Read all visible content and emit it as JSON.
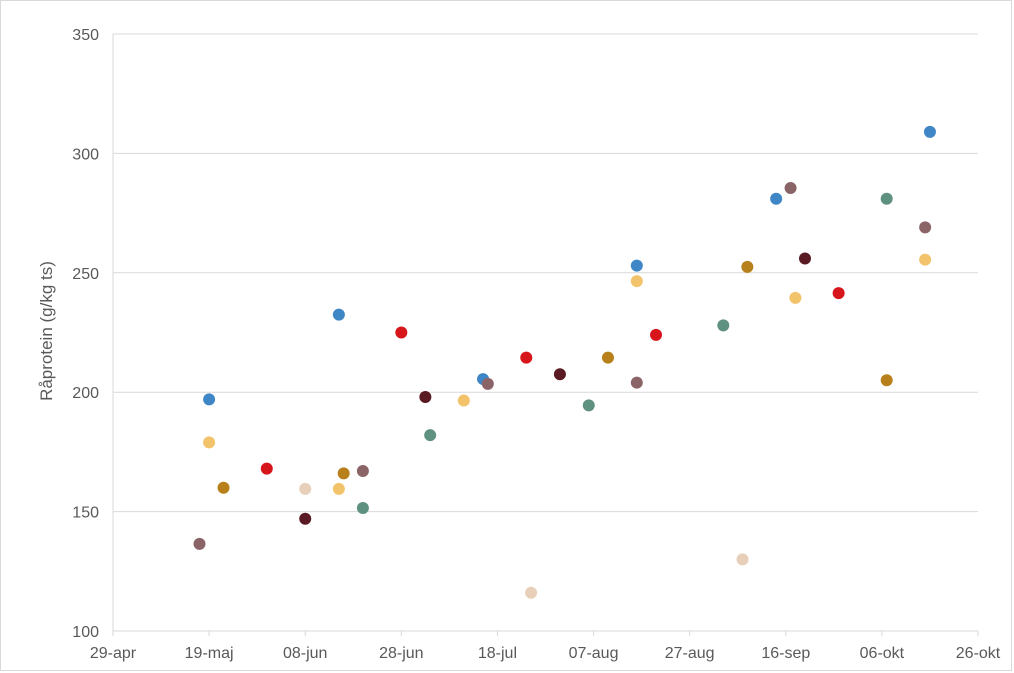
{
  "chart_data": {
    "type": "scatter",
    "title": "",
    "xlabel": "",
    "ylabel": "Råprotein (g/kg ts)",
    "ylim": [
      100,
      350
    ],
    "y_ticks": [
      100,
      150,
      200,
      250,
      300,
      350
    ],
    "x_ticks": [
      "29-apr",
      "19-maj",
      "08-jun",
      "28-jun",
      "18-jul",
      "07-aug",
      "27-aug",
      "16-sep",
      "06-okt",
      "26-okt"
    ],
    "xlim": [
      "29-apr",
      "26-okt"
    ],
    "grid": true,
    "legend": "none",
    "points": [
      {
        "x": "17-maj",
        "y": 136.5,
        "color": "#8b6468"
      },
      {
        "x": "19-maj",
        "y": 197,
        "color": "#3f86c6"
      },
      {
        "x": "19-maj",
        "y": 179,
        "color": "#f2c36b"
      },
      {
        "x": "22-maj",
        "y": 160,
        "color": "#b7801a"
      },
      {
        "x": "31-maj",
        "y": 168,
        "color": "#d7161c"
      },
      {
        "x": "08-jun",
        "y": 159.5,
        "color": "#e8cfba"
      },
      {
        "x": "08-jun",
        "y": 147,
        "color": "#5a1a23"
      },
      {
        "x": "15-jun",
        "y": 232.5,
        "color": "#3f86c6"
      },
      {
        "x": "15-jun",
        "y": 159.5,
        "color": "#f2c36b"
      },
      {
        "x": "16-jun",
        "y": 166,
        "color": "#b7801a"
      },
      {
        "x": "20-jun",
        "y": 151.5,
        "color": "#5f9180"
      },
      {
        "x": "20-jun",
        "y": 167,
        "color": "#8b6468"
      },
      {
        "x": "28-jun",
        "y": 225,
        "color": "#d7161c"
      },
      {
        "x": "03-jul",
        "y": 198,
        "color": "#5a1a23"
      },
      {
        "x": "04-jul",
        "y": 182,
        "color": "#5f9180"
      },
      {
        "x": "11-jul",
        "y": 196.5,
        "color": "#f2c36b"
      },
      {
        "x": "15-jul",
        "y": 205.5,
        "color": "#3f86c6"
      },
      {
        "x": "16-jul",
        "y": 203.5,
        "color": "#8b6468"
      },
      {
        "x": "25-jul",
        "y": 116,
        "color": "#e8cfba"
      },
      {
        "x": "24-jul",
        "y": 214.5,
        "color": "#d7161c"
      },
      {
        "x": "31-jul",
        "y": 207.5,
        "color": "#5a1a23"
      },
      {
        "x": "06-aug",
        "y": 194.5,
        "color": "#5f9180"
      },
      {
        "x": "10-aug",
        "y": 214.5,
        "color": "#b7801a"
      },
      {
        "x": "16-aug",
        "y": 204,
        "color": "#8b6468"
      },
      {
        "x": "16-aug",
        "y": 253,
        "color": "#3f86c6"
      },
      {
        "x": "16-aug",
        "y": 246.5,
        "color": "#f2c36b"
      },
      {
        "x": "20-aug",
        "y": 224,
        "color": "#d7161c"
      },
      {
        "x": "03-sep",
        "y": 228,
        "color": "#5f9180"
      },
      {
        "x": "07-sep",
        "y": 130,
        "color": "#e8cfba"
      },
      {
        "x": "08-sep",
        "y": 252.5,
        "color": "#b7801a"
      },
      {
        "x": "14-sep",
        "y": 281,
        "color": "#3f86c6"
      },
      {
        "x": "17-sep",
        "y": 285.5,
        "color": "#8b6468"
      },
      {
        "x": "18-sep",
        "y": 239.5,
        "color": "#f2c36b"
      },
      {
        "x": "20-sep",
        "y": 256,
        "color": "#5a1a23"
      },
      {
        "x": "27-sep",
        "y": 241.5,
        "color": "#d7161c"
      },
      {
        "x": "07-okt",
        "y": 281,
        "color": "#5f9180"
      },
      {
        "x": "07-okt",
        "y": 205,
        "color": "#b7801a"
      },
      {
        "x": "15-okt",
        "y": 269,
        "color": "#8b6468"
      },
      {
        "x": "15-okt",
        "y": 255.5,
        "color": "#f2c36b"
      },
      {
        "x": "16-okt",
        "y": 309,
        "color": "#3f86c6"
      }
    ]
  }
}
